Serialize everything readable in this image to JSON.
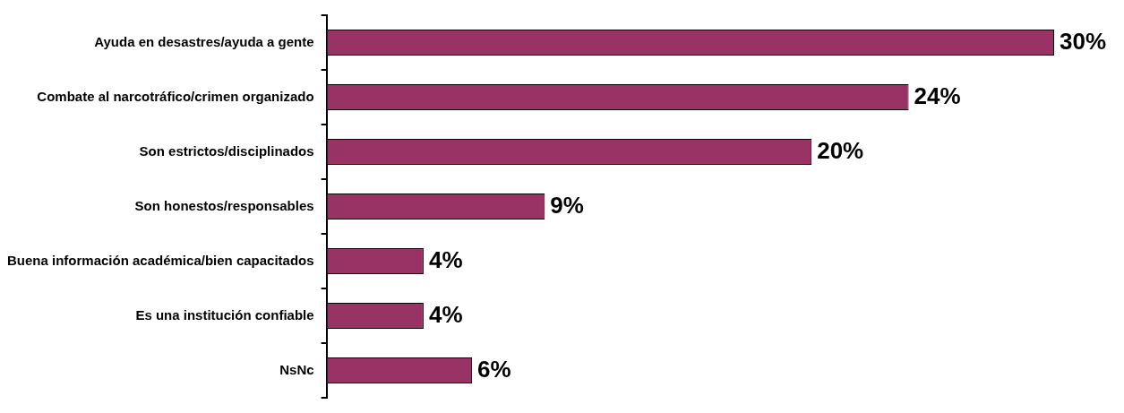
{
  "chart_data": {
    "type": "bar",
    "orientation": "horizontal",
    "categories": [
      "Ayuda en desastres/ayuda a gente",
      "Combate al narcotráfico/crimen organizado",
      "Son estrictos/disciplinados",
      "Son honestos/responsables",
      "Buena información académica/bien capacitados",
      "Es una institución confiable",
      "NsNc"
    ],
    "values": [
      30,
      24,
      20,
      9,
      4,
      4,
      6
    ],
    "value_labels": [
      "30%",
      "24%",
      "20%",
      "9%",
      "4%",
      "4%",
      "6%"
    ],
    "color": "#993366",
    "legend": false
  }
}
